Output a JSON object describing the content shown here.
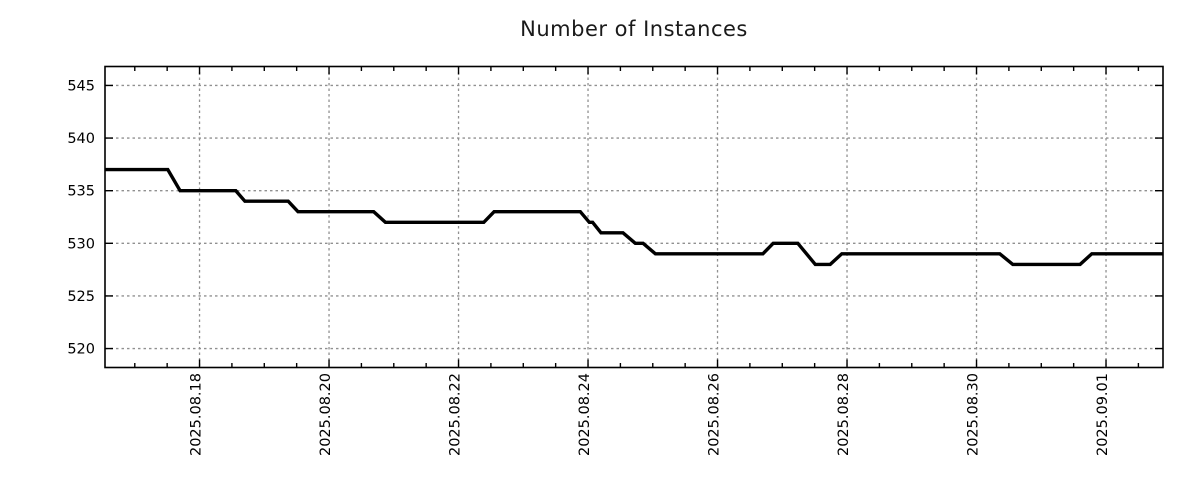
{
  "chart_data": {
    "type": "line",
    "title": "Number of Instances",
    "xlabel": "",
    "ylabel": "",
    "x_unit": "days since 2025.08.16 00:00 (read from axis)",
    "xlim": [
      0.54,
      16.88
    ],
    "ylim": [
      518.2,
      546.8
    ],
    "grid": {
      "show": true,
      "color": "#909090",
      "dash": "2.5 3"
    },
    "axis_color": "#000000",
    "text_color": "#000000",
    "legend": "none",
    "x_ticks": [
      {
        "pos": 2,
        "label": "2025.08.18"
      },
      {
        "pos": 4,
        "label": "2025.08.20"
      },
      {
        "pos": 6,
        "label": "2025.08.22"
      },
      {
        "pos": 8,
        "label": "2025.08.24"
      },
      {
        "pos": 10,
        "label": "2025.08.26"
      },
      {
        "pos": 12,
        "label": "2025.08.28"
      },
      {
        "pos": 14,
        "label": "2025.08.30"
      },
      {
        "pos": 16,
        "label": "2025.09.01"
      }
    ],
    "x_minor_step": 0.5,
    "y_ticks": [
      {
        "pos": 520,
        "label": "520"
      },
      {
        "pos": 525,
        "label": "525"
      },
      {
        "pos": 530,
        "label": "530"
      },
      {
        "pos": 535,
        "label": "535"
      },
      {
        "pos": 540,
        "label": "540"
      },
      {
        "pos": 545,
        "label": "545"
      }
    ],
    "series": [
      {
        "name": "instances",
        "color": "#000000",
        "line_width": 3.4,
        "points": [
          [
            0.54,
            537
          ],
          [
            1.51,
            537
          ],
          [
            1.7,
            535
          ],
          [
            2.56,
            535
          ],
          [
            2.7,
            534
          ],
          [
            3.37,
            534
          ],
          [
            3.52,
            533
          ],
          [
            4.69,
            533
          ],
          [
            4.87,
            532
          ],
          [
            6.39,
            532
          ],
          [
            6.55,
            533
          ],
          [
            7.88,
            533
          ],
          [
            8.02,
            532
          ],
          [
            8.07,
            532
          ],
          [
            8.2,
            531
          ],
          [
            8.54,
            531
          ],
          [
            8.73,
            530
          ],
          [
            8.85,
            530
          ],
          [
            9.04,
            529
          ],
          [
            10.7,
            529
          ],
          [
            10.86,
            530
          ],
          [
            11.24,
            530
          ],
          [
            11.51,
            528
          ],
          [
            11.74,
            528
          ],
          [
            11.92,
            529
          ],
          [
            14.36,
            529
          ],
          [
            14.56,
            528
          ],
          [
            15.6,
            528
          ],
          [
            15.78,
            529
          ],
          [
            16.88,
            529
          ]
        ]
      }
    ]
  }
}
